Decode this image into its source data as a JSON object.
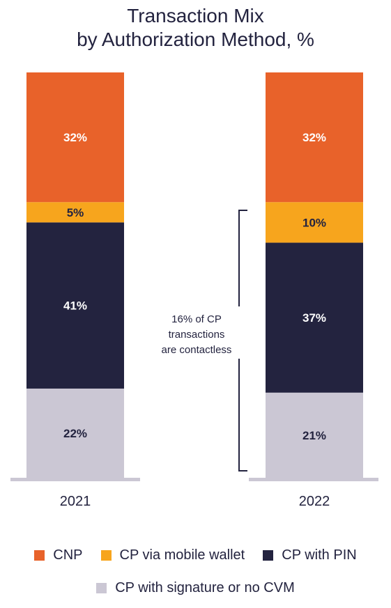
{
  "chart_data": {
    "type": "bar",
    "stacked": true,
    "title_line1": "Transaction Mix",
    "title_line2": "by Authorization Method, %",
    "categories": [
      "2021",
      "2022"
    ],
    "series": [
      {
        "name": "CP with signature or no CVM",
        "color": "#cbc7d4",
        "label_color": "#23233f",
        "values": [
          22,
          21
        ],
        "labels": [
          "22%",
          "21%"
        ]
      },
      {
        "name": "CP with PIN",
        "color": "#23233f",
        "label_color": "#ffffff",
        "values": [
          41,
          37
        ],
        "labels": [
          "41%",
          "37%"
        ]
      },
      {
        "name": "CP via mobile wallet",
        "color": "#f7a51d",
        "label_color": "#23233f",
        "values": [
          5,
          10
        ],
        "labels": [
          "5%",
          "10%"
        ]
      },
      {
        "name": "CNP",
        "color": "#e8622a",
        "label_color": "#ffffff",
        "values": [
          32,
          32
        ],
        "labels": [
          "32%",
          "32%"
        ]
      }
    ],
    "annotation": {
      "category": "2022",
      "lines": [
        "16% of CP",
        "transactions",
        "are contactless"
      ]
    },
    "legend": [
      {
        "name": "CNP",
        "color": "#e8622a"
      },
      {
        "name": "CP via mobile wallet",
        "color": "#f7a51d"
      },
      {
        "name": "CP with PIN",
        "color": "#23233f"
      },
      {
        "name": "CP with signature or no CVM",
        "color": "#cbc7d4"
      }
    ]
  }
}
